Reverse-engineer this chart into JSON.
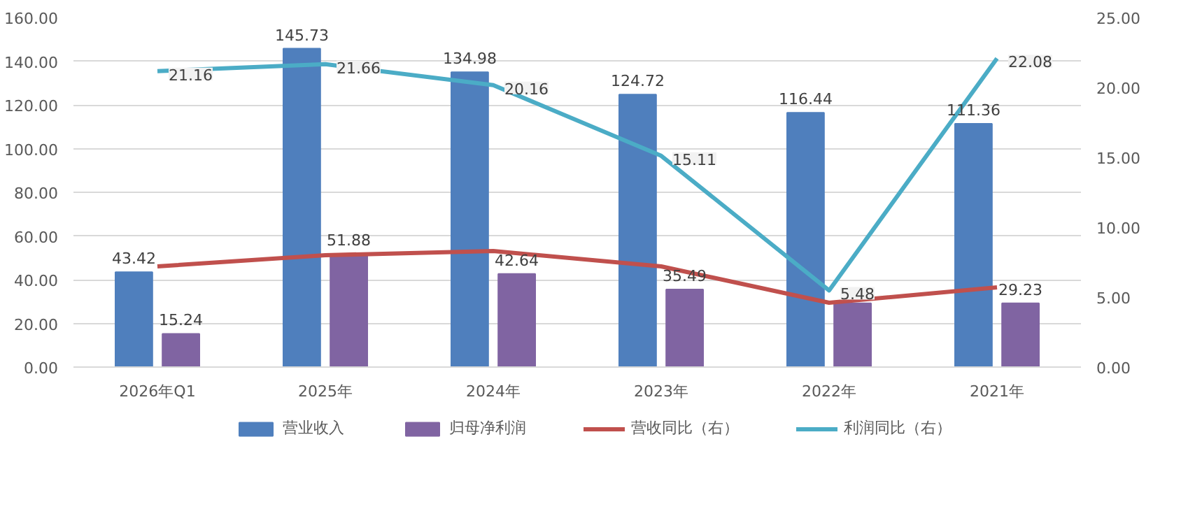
{
  "chart_data": {
    "type": "bar",
    "categories": [
      "2026年Q1",
      "2025年",
      "2024年",
      "2023年",
      "2022年",
      "2021年"
    ],
    "ylim": [
      0,
      160
    ],
    "yticks": [
      {
        "value": 0,
        "label": "0.00"
      },
      {
        "value": 20,
        "label": "20.00"
      },
      {
        "value": 40,
        "label": "40.00"
      },
      {
        "value": 60,
        "label": "60.00"
      },
      {
        "value": 80,
        "label": "80.00"
      },
      {
        "value": 100,
        "label": "100.00"
      },
      {
        "value": 120,
        "label": "120.00"
      },
      {
        "value": 140,
        "label": "140.00"
      },
      {
        "value": 160,
        "label": "160.00"
      }
    ],
    "y2lim": [
      0,
      25
    ],
    "y2ticks": [
      {
        "value": 0,
        "label": "0.00"
      },
      {
        "value": 5,
        "label": "5.00"
      },
      {
        "value": 10,
        "label": "10.00"
      },
      {
        "value": 15,
        "label": "15.00"
      },
      {
        "value": 20,
        "label": "20.00"
      },
      {
        "value": 25,
        "label": "25.00"
      }
    ],
    "grid": "y",
    "legend": "bottom",
    "series": [
      {
        "name": "营业收入",
        "color": "#4f7fbd",
        "values": [
          43.42,
          145.73,
          134.98,
          124.72,
          116.44,
          111.36
        ],
        "value_labels": [
          "43.42",
          "145.73",
          "134.98",
          "124.72",
          "116.44",
          "111.36"
        ]
      },
      {
        "name": "归母净利润",
        "color": "#8064a2",
        "values": [
          15.24,
          51.88,
          42.64,
          35.49,
          29.2,
          29.23
        ],
        "value_labels": [
          "15.24",
          "51.88",
          "42.64",
          "35.49",
          null,
          "29.23"
        ]
      },
      {
        "name": "营收同比（右）",
        "type": "line",
        "axis": "y2",
        "color": "#c0504d",
        "values": [
          7.2,
          8.0,
          8.3,
          7.2,
          4.6,
          5.7
        ]
      },
      {
        "name": "利润同比（右）",
        "type": "line",
        "axis": "y2",
        "color": "#4bacc6",
        "values": [
          21.16,
          21.66,
          20.16,
          15.11,
          5.48,
          22.08
        ],
        "value_labels": [
          "21.16",
          "21.66",
          "20.16",
          "15.11",
          "5.48",
          "22.08"
        ]
      }
    ]
  }
}
